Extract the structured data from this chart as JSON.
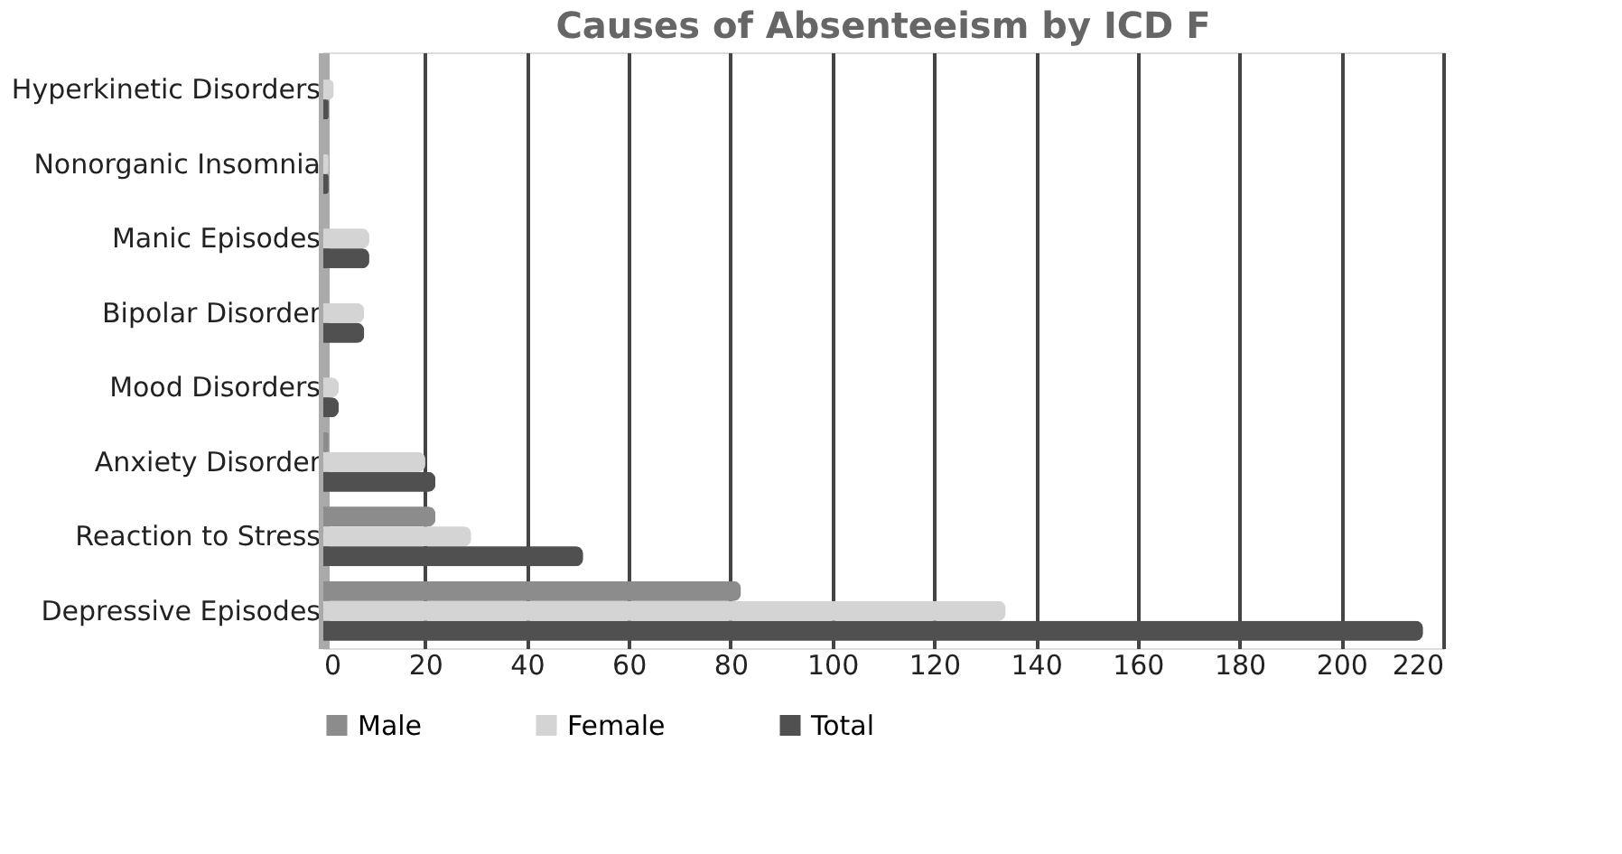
{
  "chart_data": {
    "type": "bar",
    "orientation": "horizontal",
    "title": "Causes of Absenteeism by ICD F",
    "categories": [
      "Hyperkinetic Disorders",
      "Nonorganic Insomnia",
      "Manic Episodes",
      "Bipolar Disorder",
      "Mood Disorders",
      "Anxiety Disorder",
      "Reaction to Stress",
      "Depressive Episodes"
    ],
    "series": [
      {
        "name": "Male",
        "color": "#8c8c8c",
        "values": [
          0,
          0,
          0,
          0,
          0,
          1,
          22,
          82
        ]
      },
      {
        "name": "Female",
        "color": "#d4d4d4",
        "values": [
          2,
          1,
          9,
          8,
          3,
          20,
          29,
          134
        ]
      },
      {
        "name": "Total",
        "color": "#505050",
        "values": [
          1,
          1,
          9,
          8,
          3,
          22,
          51,
          216
        ]
      }
    ],
    "xlim": [
      0,
      220
    ],
    "xticks": [
      0,
      20,
      40,
      60,
      80,
      100,
      120,
      140,
      160,
      180,
      200,
      220
    ],
    "grid": "x",
    "legend": "bottom"
  }
}
